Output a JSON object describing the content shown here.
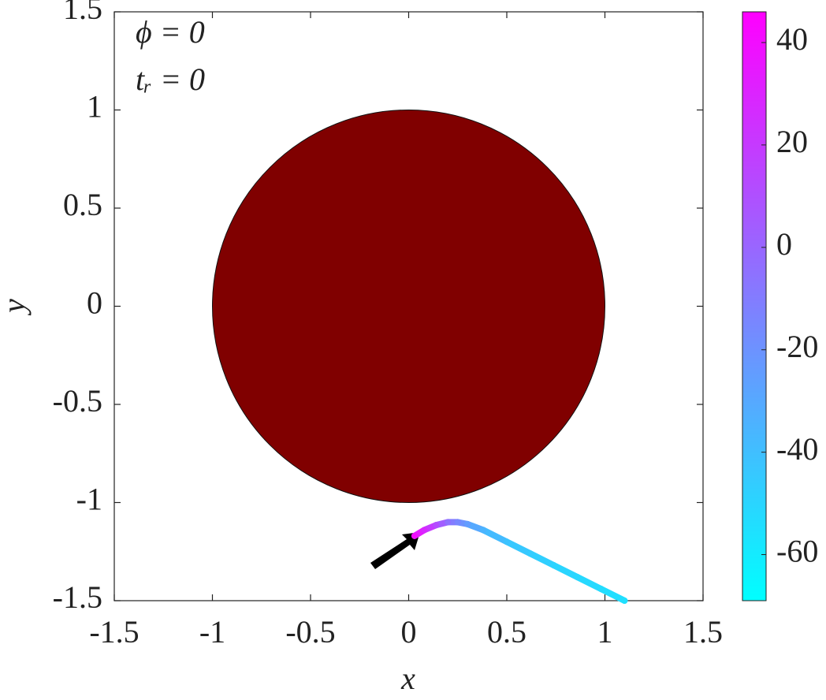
{
  "chart_data": {
    "type": "trajectory",
    "xlabel": "x",
    "ylabel": "y",
    "annotations": [
      "ϕ = 0",
      "tᵣ = 0"
    ],
    "xlim": [
      -1.5,
      1.5
    ],
    "ylim": [
      -1.5,
      1.5
    ],
    "xticks": [
      -1.5,
      -1,
      -0.5,
      0,
      0.5,
      1,
      1.5
    ],
    "yticks": [
      -1.5,
      -1,
      -0.5,
      0,
      0.5,
      1,
      1.5
    ],
    "disk": {
      "center": [
        0,
        0
      ],
      "radius": 1,
      "color": "#800000"
    },
    "x": [
      0.03,
      0.08,
      0.14,
      0.2,
      0.25,
      0.3,
      0.38,
      0.5,
      0.62,
      0.74,
      0.86,
      0.98,
      1.1
    ],
    "y": [
      -1.17,
      -1.14,
      -1.115,
      -1.1,
      -1.1,
      -1.11,
      -1.14,
      -1.2,
      -1.26,
      -1.32,
      -1.38,
      -1.44,
      -1.5
    ],
    "color_values": [
      40,
      28,
      12,
      -5,
      -15,
      -25,
      -35,
      -42,
      -46,
      -49,
      -51,
      -53,
      -55
    ],
    "colormap": "cool",
    "clim": [
      -69,
      46
    ],
    "cticks": [
      -60,
      -40,
      -20,
      0,
      20,
      40
    ]
  }
}
